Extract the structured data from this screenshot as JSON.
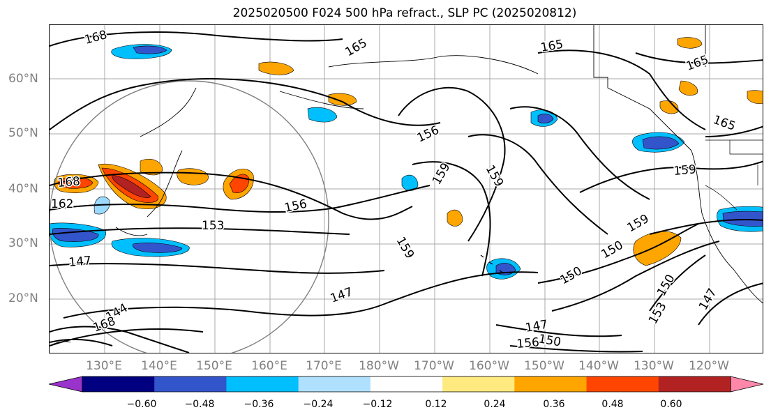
{
  "title": "2025020500 F024 500 hPa refract., SLP PC (2025020812)",
  "lat_labels": [
    "60°N",
    "50°N",
    "40°N",
    "30°N",
    "20°N"
  ],
  "lon_labels": [
    "130°E",
    "140°E",
    "150°E",
    "160°E",
    "170°E",
    "180°W",
    "170°W",
    "160°W",
    "150°W",
    "140°W",
    "130°W",
    "120°W"
  ],
  "contour_labels": [
    "168",
    "165",
    "165",
    "165",
    "165",
    "156",
    "159",
    "159",
    "168",
    "162",
    "156",
    "153",
    "159",
    "159",
    "150",
    "150",
    "147",
    "147",
    "147",
    "144",
    "168",
    "153",
    "147",
    "150",
    "156",
    "159",
    "150",
    "153",
    "147"
  ],
  "colorbar": {
    "ticks": [
      "−0.60",
      "−0.48",
      "−0.36",
      "−0.24",
      "−0.12",
      "0.12",
      "0.24",
      "0.36",
      "0.48",
      "0.60"
    ],
    "colors": [
      "#9933cc",
      "#000080",
      "#3355cc",
      "#00bfff",
      "#b0e0ff",
      "#ffffff",
      "#ffea80",
      "#ffa500",
      "#ff4500",
      "#b22222",
      "#ff88aa"
    ]
  }
}
